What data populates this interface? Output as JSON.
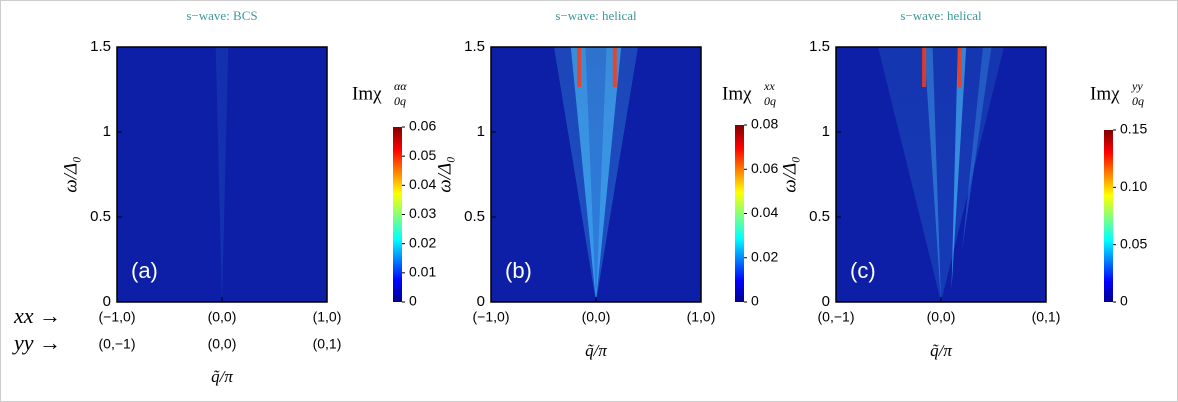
{
  "chart_data": [
    {
      "type": "heatmap",
      "title": "s−wave: BCS",
      "panel_label": "(a)",
      "ylabel": "ω/Δ₀",
      "xlabel": "q̃/π",
      "row_headers": [
        "xx →",
        "yy →"
      ],
      "xlim": [
        -1,
        1
      ],
      "xticks": [
        {
          "value": -1,
          "label": "(−1,0)"
        },
        {
          "value": 0,
          "label": "(0,0)"
        },
        {
          "value": 1,
          "label": "(1,0)"
        }
      ],
      "xticks2": [
        {
          "value": -1,
          "label": "(0,−1)"
        },
        {
          "value": 0,
          "label": "(0,0)"
        },
        {
          "value": 1,
          "label": "(0,1)"
        }
      ],
      "ylim": [
        0,
        1.5
      ],
      "yticks": [
        0,
        0.5,
        1,
        1.5
      ],
      "colorbar_label": {
        "base": "Imχ",
        "sup": "αα",
        "sub": "0q"
      },
      "clim": [
        0,
        0.06
      ],
      "cticks": [
        0,
        0.01,
        0.02,
        0.03,
        0.04,
        0.05,
        0.06
      ]
    },
    {
      "type": "heatmap",
      "title": "s−wave: helical",
      "panel_label": "(b)",
      "xlabel": "q̃/π",
      "ylabel": "ω/Δ₀",
      "xlim": [
        -1,
        1
      ],
      "xticks": [
        {
          "value": -1,
          "label": "(−1,0)"
        },
        {
          "value": 0,
          "label": "(0,0)"
        },
        {
          "value": 1,
          "label": "(1,0)"
        }
      ],
      "ylim": [
        0,
        1.5
      ],
      "yticks": [
        0,
        0.5,
        1,
        1.5
      ],
      "colorbar_label": {
        "base": "Imχ",
        "sup": "xx",
        "sub": "0q"
      },
      "clim": [
        0,
        0.08
      ],
      "cticks": [
        0,
        0.02,
        0.04,
        0.06,
        0.08
      ]
    },
    {
      "type": "heatmap",
      "title": "s−wave: helical",
      "panel_label": "(c)",
      "xlabel": "q̃/π",
      "ylabel": "ω/Δ₀",
      "xlim": [
        -1,
        1
      ],
      "xticks": [
        {
          "value": -1,
          "label": "(0,−1)"
        },
        {
          "value": 0,
          "label": "(0,0)"
        },
        {
          "value": 1,
          "label": "(0,1)"
        }
      ],
      "ylim": [
        0,
        1.5
      ],
      "yticks": [
        0,
        0.5,
        1,
        1.5
      ],
      "colorbar_label": {
        "base": "Imχ",
        "sup": "yy",
        "sub": "0q"
      },
      "clim": [
        0,
        0.15
      ],
      "cticks": [
        0,
        0.05,
        {
          "value": 0.1,
          "label": "0.10"
        },
        0.15
      ]
    }
  ]
}
